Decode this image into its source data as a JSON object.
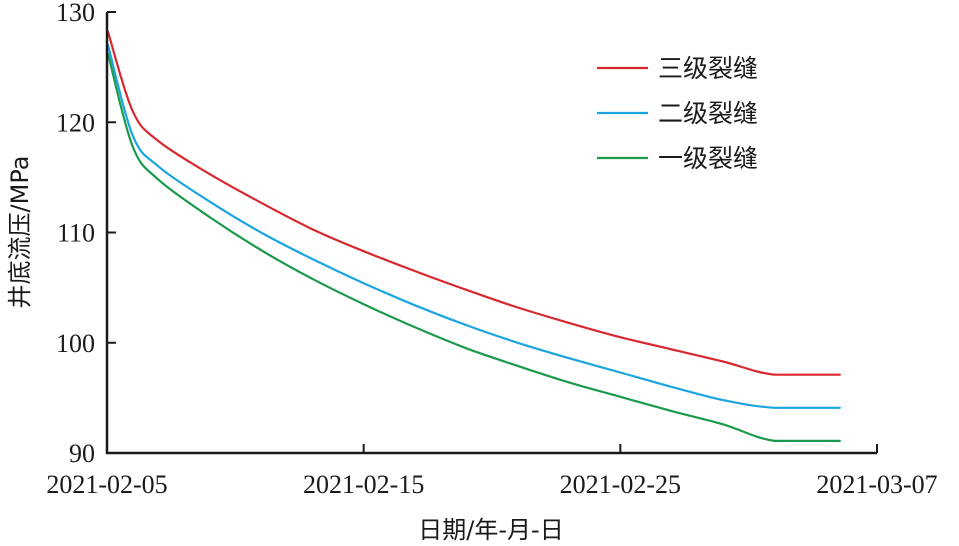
{
  "chart_data": {
    "type": "line",
    "xlabel": "日期/年-月-日",
    "ylabel": "井底流压/MPa",
    "xlim": [
      "2021-02-05",
      "2021-03-07"
    ],
    "ylim": [
      90,
      130
    ],
    "x_ticks": [
      "2021-02-05",
      "2021-02-15",
      "2021-02-25",
      "2021-03-07"
    ],
    "y_ticks": [
      90,
      100,
      110,
      120,
      130
    ],
    "legend_position": "top-right",
    "grid": false,
    "x": [
      "2021-02-05",
      "2021-02-06",
      "2021-02-07",
      "2021-02-09",
      "2021-02-11",
      "2021-02-13",
      "2021-02-15",
      "2021-02-17",
      "2021-02-19",
      "2021-02-21",
      "2021-02-23",
      "2021-02-25",
      "2021-02-27",
      "2021-03-01",
      "2021-03-03",
      "2021-03-05"
    ],
    "series": [
      {
        "name": "三级裂缝",
        "color": "#d7282f",
        "values": [
          128.2,
          121.0,
          118.3,
          115.3,
          112.7,
          110.3,
          108.3,
          106.5,
          104.8,
          103.2,
          101.8,
          100.5,
          99.4,
          98.3,
          97.1,
          97.1
        ]
      },
      {
        "name": "二级裂缝",
        "color": "#1ba5e0",
        "values": [
          127.0,
          118.8,
          116.0,
          112.8,
          110.0,
          107.6,
          105.4,
          103.4,
          101.6,
          100.0,
          98.6,
          97.3,
          96.0,
          94.8,
          94.1,
          94.1
        ]
      },
      {
        "name": "一级裂缝",
        "color": "#1a9a4a",
        "values": [
          126.2,
          117.8,
          114.8,
          111.4,
          108.4,
          105.8,
          103.5,
          101.4,
          99.5,
          97.9,
          96.4,
          95.1,
          93.8,
          92.6,
          91.1,
          91.1
        ]
      }
    ]
  }
}
